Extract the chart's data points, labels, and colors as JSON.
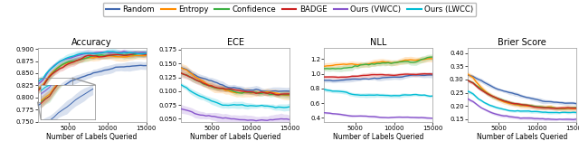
{
  "legend_entries": [
    "Random",
    "Entropy",
    "Confidence",
    "BADGE",
    "Ours (VWCC)",
    "Ours (LWCC)"
  ],
  "colors": {
    "Random": "#4169b0",
    "Entropy": "#ff8c00",
    "Confidence": "#3cb043",
    "BADGE": "#cc2222",
    "Ours (VWCC)": "#8855cc",
    "Ours (LWCC)": "#00bcd4"
  },
  "x_ticks": [
    5000,
    10000,
    15000
  ],
  "x_label": "Number of Labels Queried",
  "panels": {
    "Accuracy": {
      "ylim": [
        0.75,
        0.902
      ],
      "yticks": [
        0.75,
        0.775,
        0.8,
        0.825,
        0.85,
        0.875,
        0.9
      ]
    },
    "ECE": {
      "ylim": [
        0.045,
        0.178
      ],
      "yticks": [
        0.05,
        0.075,
        0.1,
        0.125,
        0.15,
        0.175
      ]
    },
    "NLL": {
      "ylim": [
        0.35,
        1.35
      ],
      "yticks": [
        0.4,
        0.6,
        0.8,
        1.0,
        1.2
      ]
    },
    "Brier Score": {
      "ylim": [
        0.14,
        0.42
      ],
      "yticks": [
        0.15,
        0.2,
        0.25,
        0.3,
        0.35,
        0.4
      ]
    }
  }
}
